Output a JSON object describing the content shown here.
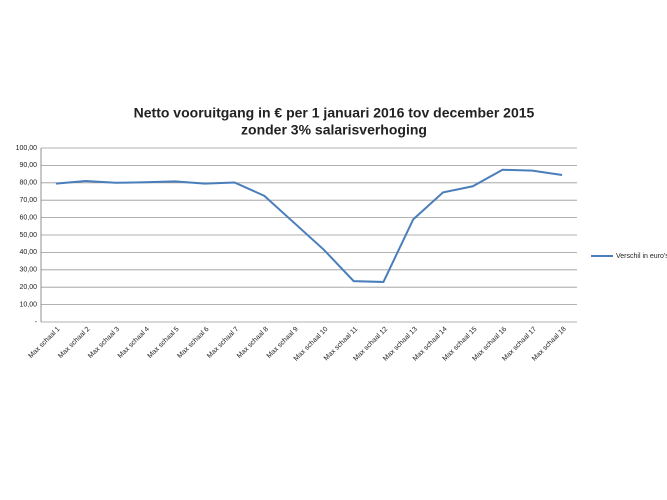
{
  "chart_data": {
    "type": "line",
    "title": [
      "Netto vooruitgang in €  per 1 januari 2016 tov december 2015",
      "zonder 3% salarisverhoging"
    ],
    "categories": [
      "Max schaal 1",
      "Max schaal 2",
      "Max schaal 3",
      "Max schaal 4",
      "Max schaal 5",
      "Max schaal 6",
      "Max schaal 7",
      "Max schaal 8",
      "Max schaal 9",
      "Max schaal 10",
      "Max schaal 11",
      "Max schaal 12",
      "Max schaal 13",
      "Max schaal 14",
      "Max schaal 15",
      "Max schaal 16",
      "Max schaal 17",
      "Max schaal 18"
    ],
    "series": [
      {
        "name": "Verschil in euro's",
        "color": "#4a7ebb",
        "values": [
          79.5,
          81,
          80,
          80.3,
          80.8,
          79.5,
          80.2,
          72.5,
          57,
          41.5,
          23.5,
          23,
          59,
          74.5,
          78,
          87.5,
          87,
          84.5
        ]
      }
    ],
    "ylim": [
      0,
      100
    ],
    "yticks": [
      {
        "value": 0,
        "label": "-"
      },
      {
        "value": 10,
        "label": "10,00"
      },
      {
        "value": 20,
        "label": "20,00"
      },
      {
        "value": 30,
        "label": "30,00"
      },
      {
        "value": 40,
        "label": "40,00"
      },
      {
        "value": 50,
        "label": "50,00"
      },
      {
        "value": 60,
        "label": "60,00"
      },
      {
        "value": 70,
        "label": "70,00"
      },
      {
        "value": 80,
        "label": "80,00"
      },
      {
        "value": 90,
        "label": "90,00"
      },
      {
        "value": 100,
        "label": "100,00"
      }
    ],
    "grid": true,
    "legend": "right"
  }
}
